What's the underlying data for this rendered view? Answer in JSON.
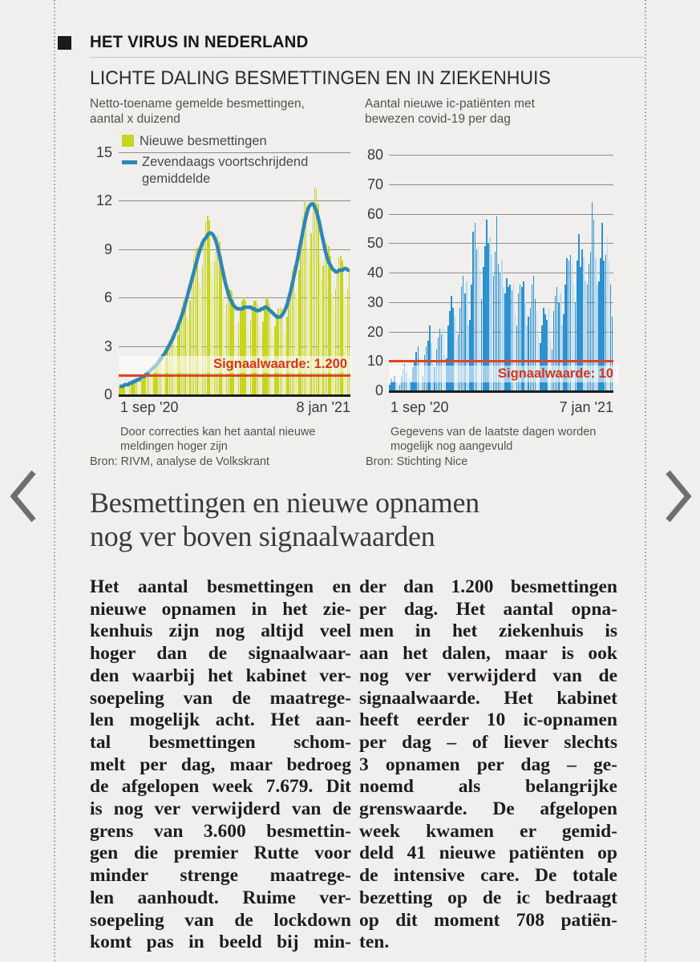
{
  "page": {
    "kicker": "HET VIRUS IN NEDERLAND",
    "section_title": "LICHTE DALING BESMETTINGEN EN IN ZIEKENHUIS"
  },
  "nav": {
    "prev": "previous-page",
    "next": "next-page"
  },
  "colors": {
    "bg": "#f0efed",
    "left_bar": "#c8d51f",
    "left_bar_light": "#e9eda6",
    "avg_line": "#2f86b3",
    "right_bar": "#2b91d0",
    "right_bar_light": "#b5d8ef",
    "signal_red": "#e04327",
    "signal_text": "#d5331b"
  },
  "chart_data": [
    {
      "type": "bar",
      "title": [
        "Netto-toename gemelde besmettingen,",
        "aantal x duizend"
      ],
      "legend": [
        "Nieuwe besmettingen",
        "Zevendaags voortschrijdend",
        "gemiddelde"
      ],
      "ylim": [
        0,
        15
      ],
      "yticks": [
        0,
        3,
        6,
        9,
        12,
        15
      ],
      "x_start_label": "1 sep '20",
      "x_end_label": "8 jan '21",
      "signal_value": 1.2,
      "signal_label": "Signaalwaarde: 1.200",
      "note": [
        "Door correcties kan het aantal nieuwe",
        "meldingen hoger zijn"
      ],
      "source": "Bron: RIVM, analyse de Volkskrant",
      "bars": [
        0.5,
        0.6,
        0.6,
        0.6,
        0.5,
        0.4,
        0.6,
        0.7,
        0.9,
        0.9,
        1.0,
        0.7,
        0.7,
        0.9,
        1.1,
        1.3,
        1.5,
        1.5,
        1.2,
        1.2,
        1.4,
        1.8,
        2.1,
        2.4,
        2.4,
        1.9,
        1.8,
        2.3,
        2.9,
        3.4,
        3.7,
        3.8,
        3.0,
        2.9,
        3.7,
        4.6,
        5.4,
        5.8,
        6.0,
        4.8,
        4.6,
        5.8,
        7.2,
        8.4,
        9.0,
        9.1,
        7.0,
        6.6,
        8.0,
        9.6,
        10.7,
        11.1,
        10.8,
        8.0,
        7.1,
        8.2,
        9.4,
        9.9,
        9.5,
        8.6,
        6.0,
        5.0,
        5.6,
        6.2,
        6.5,
        6.4,
        5.9,
        4.3,
        3.8,
        4.5,
        5.3,
        5.8,
        6.0,
        5.8,
        4.3,
        3.9,
        4.6,
        5.3,
        5.8,
        5.8,
        5.6,
        4.2,
        3.8,
        4.5,
        5.4,
        5.9,
        5.9,
        5.6,
        4.1,
        3.6,
        4.2,
        4.8,
        5.3,
        5.4,
        5.3,
        4.1,
        3.8,
        4.8,
        6.0,
        7.0,
        7.7,
        8.0,
        6.3,
        6.0,
        7.7,
        9.5,
        11.1,
        11.9,
        12.0,
        9.2,
        8.4,
        10.0,
        11.8,
        12.8,
        12.7,
        11.8,
        8.3,
        7.1,
        8.0,
        8.9,
        9.4,
        9.2,
        8.6,
        6.2,
        5.5,
        6.5,
        7.6,
        8.5,
        8.6,
        8.3,
        6.2,
        5.6,
        6.5,
        7.7
      ],
      "avg_line": [
        0.5,
        0.5,
        0.5,
        0.6,
        0.6,
        0.6,
        0.7,
        0.7,
        0.8,
        0.8,
        0.9,
        0.9,
        1.0,
        1.1,
        1.1,
        1.2,
        1.3,
        1.4,
        1.5,
        1.6,
        1.7,
        1.8,
        1.9,
        2.1,
        2.2,
        2.4,
        2.5,
        2.7,
        2.9,
        3.1,
        3.3,
        3.5,
        3.8,
        4.0,
        4.3,
        4.6,
        4.9,
        5.2,
        5.6,
        6.0,
        6.4,
        6.8,
        7.2,
        7.6,
        8.0,
        8.4,
        8.8,
        9.1,
        9.4,
        9.6,
        9.7,
        9.9,
        10.0,
        10.0,
        9.9,
        9.7,
        9.4,
        9.0,
        8.5,
        8.0,
        7.5,
        7.0,
        6.6,
        6.2,
        5.9,
        5.7,
        5.5,
        5.4,
        5.3,
        5.3,
        5.3,
        5.3,
        5.4,
        5.4,
        5.4,
        5.4,
        5.4,
        5.3,
        5.3,
        5.2,
        5.2,
        5.2,
        5.3,
        5.3,
        5.4,
        5.4,
        5.3,
        5.2,
        5.1,
        5.0,
        4.9,
        4.8,
        4.8,
        4.8,
        4.9,
        5.1,
        5.3,
        5.6,
        6.0,
        6.4,
        6.9,
        7.4,
        7.9,
        8.4,
        9.0,
        9.5,
        10.1,
        10.6,
        11.1,
        11.5,
        11.7,
        11.8,
        11.8,
        11.6,
        11.3,
        10.9,
        10.4,
        9.9,
        9.4,
        8.9,
        8.5,
        8.2,
        8.0,
        7.8,
        7.7,
        7.6,
        7.6,
        7.7,
        7.7,
        7.7,
        7.8,
        7.8,
        7.7,
        7.7
      ]
    },
    {
      "type": "bar",
      "title": [
        "Aantal nieuwe ic-patiënten met",
        "bewezen covid-19 per dag"
      ],
      "ylim": [
        0,
        80
      ],
      "yticks": [
        0,
        10,
        20,
        30,
        40,
        50,
        60,
        70,
        80
      ],
      "x_start_label": "1 sep '20",
      "x_end_label": "7 jan '21",
      "signal_value": 10,
      "signal_label": "Signaalwaarde: 10",
      "note": [
        "Gegevens van de laatste dagen worden",
        "mogelijk nog aangevuld"
      ],
      "source": "Bron: Stichting Nice",
      "bars": [
        2,
        4,
        3,
        5,
        3,
        1,
        2,
        5,
        7,
        9,
        6,
        8,
        4,
        3,
        8,
        10,
        13,
        15,
        11,
        6,
        5,
        12,
        15,
        17,
        22,
        16,
        9,
        8,
        14,
        18,
        21,
        19,
        22,
        12,
        11,
        22,
        27,
        32,
        28,
        25,
        17,
        19,
        28,
        35,
        39,
        33,
        37,
        22,
        24,
        36,
        54,
        57,
        48,
        49,
        41,
        31,
        42,
        49,
        58,
        50,
        52,
        46,
        39,
        47,
        59,
        43,
        40,
        44,
        35,
        33,
        38,
        35,
        36,
        34,
        36,
        26,
        22,
        33,
        36,
        35,
        37,
        30,
        22,
        25,
        28,
        36,
        39,
        31,
        27,
        19,
        16,
        22,
        28,
        26,
        24,
        28,
        17,
        14,
        27,
        32,
        35,
        30,
        33,
        22,
        26,
        36,
        45,
        44,
        46,
        43,
        36,
        30,
        44,
        53,
        42,
        48,
        45,
        37,
        36,
        43,
        47,
        64,
        58,
        45,
        36,
        37,
        45,
        57,
        44,
        46,
        52,
        44,
        36,
        25
      ]
    }
  ],
  "article": {
    "headline": [
      "Besmettingen en nieuwe opnamen",
      "nog ver boven signaalwaarden"
    ],
    "columns": [
      {
        "lines": [
          "Het aantal besmettingen en",
          "nieuwe opnamen in het zie-",
          "kenhuis zijn nog altijd veel",
          "hoger dan de signaalwaar-",
          "den waarbij het kabinet ver-",
          "soepeling van de maatrege-",
          "len mogelijk acht. Het aan-",
          "tal besmettingen schom-",
          "melt per dag, maar bedroeg",
          "de afgelopen week 7.679. Dit",
          "is nog ver verwijderd van de",
          "grens van 3.600 besmettin-",
          "gen die premier Rutte voor",
          "minder strenge maatrege-",
          "len aanhoudt. Ruime ver-",
          "soepeling van de lockdown",
          "komt pas in beeld bij min-"
        ]
      },
      {
        "lines": [
          "der dan 1.200 besmettingen",
          "per dag. Het aantal opna-",
          "men in het ziekenhuis is",
          "aan het dalen, maar is ook",
          "nog ver verwijderd van de",
          "signaalwaarde. Het kabinet",
          "heeft eerder 10 ic-opnamen",
          "per dag – of liever slechts",
          "3 opnamen per dag – ge-",
          "noemd als belangrijke",
          "grenswaarde. De afgelopen",
          "week kwamen er gemid-",
          "deld 41 nieuwe patiënten op",
          "de intensive care. De totale",
          "bezetting op de ic bedraagt",
          "op dit moment 708 patiën-",
          "ten."
        ]
      }
    ]
  }
}
